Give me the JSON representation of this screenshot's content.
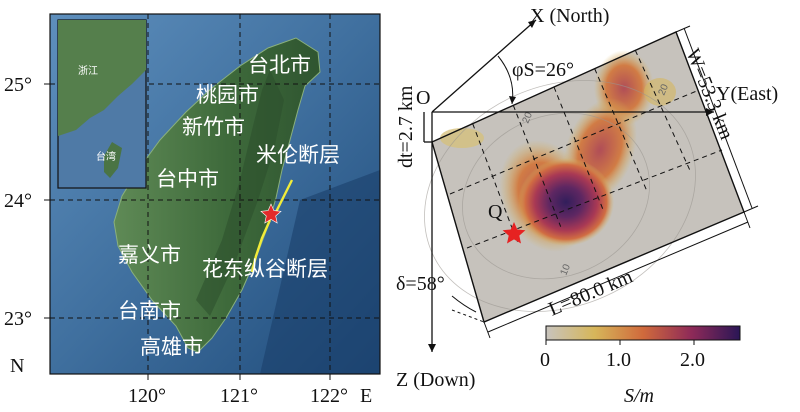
{
  "map": {
    "lat_ticks": [
      "25°",
      "24°",
      "23°"
    ],
    "lon_ticks": [
      "120°",
      "121°",
      "122°"
    ],
    "north_label": "N",
    "east_label": "E",
    "city_labels": [
      "台北市",
      "桃园市",
      "新竹市",
      "台中市",
      "嘉义市",
      "台南市",
      "高雄市"
    ],
    "fault_labels": [
      "米伦断层",
      "花东纵谷断层"
    ],
    "inset_labels": [
      "浙江",
      "台湾"
    ]
  },
  "model": {
    "axis_x": "X (North)",
    "axis_y": "Y(East)",
    "axis_z": "Z (Down)",
    "origin_label": "O",
    "hypocenter_label": "Q",
    "strike_label": "φS=26°",
    "dip_label": "δ=58°",
    "depth_label": "dt=2.7 km",
    "width_label": "W=53.3 km",
    "length_label": "L=80.0 km",
    "contour_labels": [
      "20",
      "20",
      "10"
    ]
  },
  "colorbar": {
    "ticks": [
      "0",
      "1.0",
      "2.0"
    ],
    "label": "S/m",
    "colors": [
      "#c8c4be",
      "#d6b65a",
      "#d06a3c",
      "#8e2a58",
      "#2a1656"
    ]
  }
}
